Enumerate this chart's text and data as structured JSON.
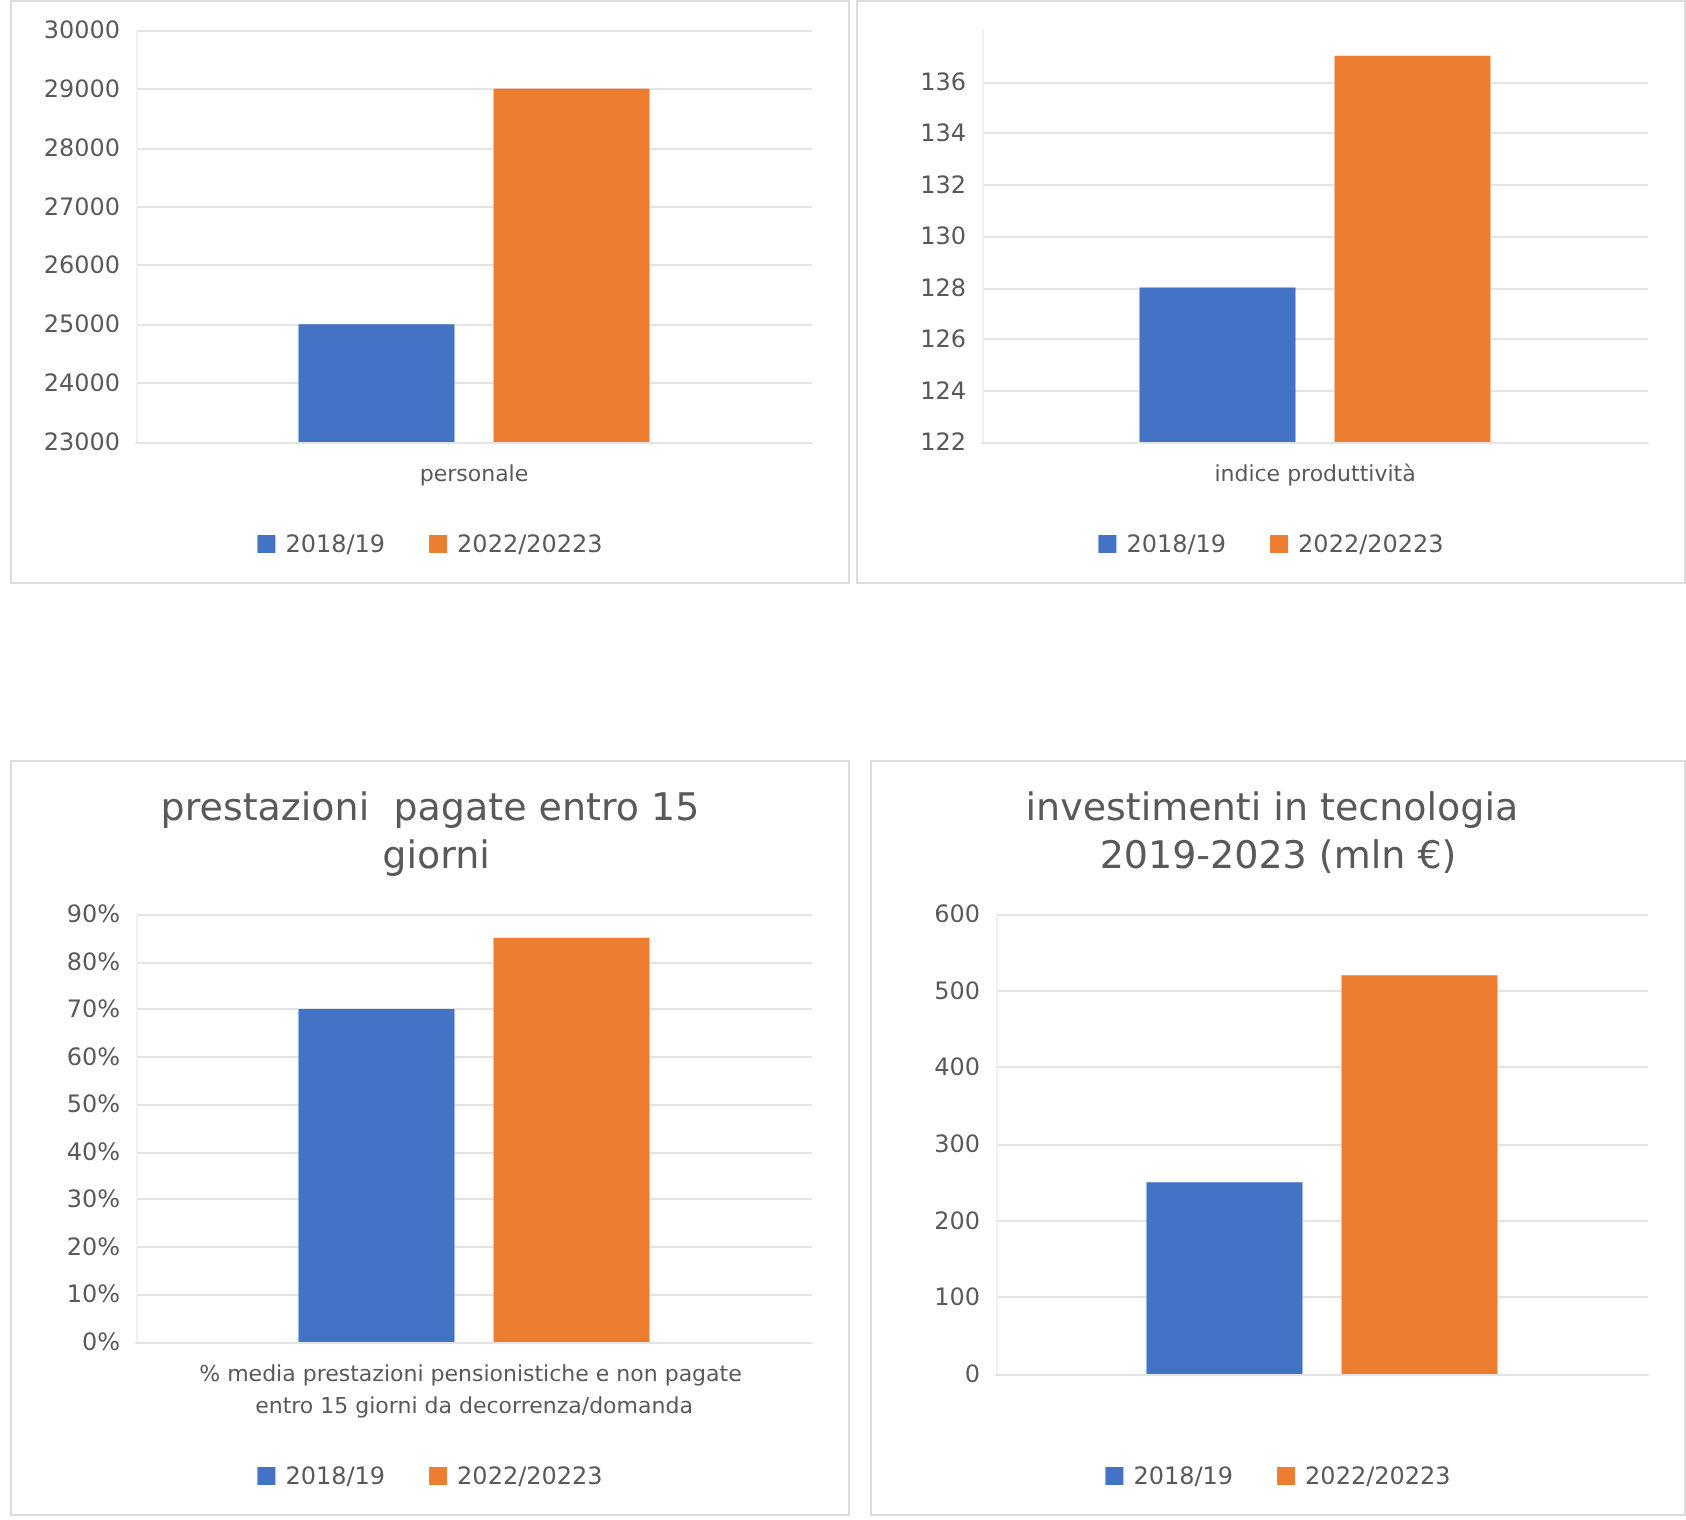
{
  "chart_data": [
    {
      "type": "bar",
      "categories": [
        "personale"
      ],
      "series": [
        {
          "name": "2018/19",
          "color": "#4472c4",
          "values": [
            25000
          ]
        },
        {
          "name": "2022/20223",
          "color": "#ed7d31",
          "values": [
            29000
          ]
        }
      ],
      "ylim": [
        23000,
        30000
      ],
      "yticks": [
        23000,
        24000,
        25000,
        26000,
        27000,
        28000,
        29000,
        30000
      ],
      "grid": "y",
      "legend": "bottom"
    },
    {
      "type": "bar",
      "categories": [
        "indice produttività"
      ],
      "series": [
        {
          "name": "2018/19",
          "color": "#4472c4",
          "values": [
            128
          ]
        },
        {
          "name": "2022/20223",
          "color": "#ed7d31",
          "values": [
            137
          ]
        }
      ],
      "ylim": [
        122,
        138
      ],
      "yticks": [
        122,
        124,
        126,
        128,
        130,
        132,
        134,
        136
      ],
      "grid": "y",
      "legend": "bottom"
    },
    {
      "type": "bar",
      "title": "prestazioni  pagate entro 15 giorni",
      "categories": [
        "% media prestazioni pensionistiche e non pagate entro 15 giorni da decorrenza/domanda"
      ],
      "series": [
        {
          "name": "2018/19",
          "color": "#4472c4",
          "values": [
            70
          ]
        },
        {
          "name": "2022/20223",
          "color": "#ed7d31",
          "values": [
            85
          ]
        }
      ],
      "ylim": [
        0,
        90
      ],
      "yticks": [
        {
          "value": 0,
          "label": "0%"
        },
        {
          "value": 10,
          "label": "10%"
        },
        {
          "value": 20,
          "label": "20%"
        },
        {
          "value": 30,
          "label": "30%"
        },
        {
          "value": 40,
          "label": "40%"
        },
        {
          "value": 50,
          "label": "50%"
        },
        {
          "value": 60,
          "label": "60%"
        },
        {
          "value": 70,
          "label": "70%"
        },
        {
          "value": 80,
          "label": "80%"
        },
        {
          "value": 90,
          "label": "90%"
        }
      ],
      "grid": "y",
      "legend": "bottom"
    },
    {
      "type": "bar",
      "title": "investimenti in tecnologia 2019-2023 (mln €)",
      "categories": [
        null
      ],
      "series": [
        {
          "name": "2018/19",
          "color": "#4472c4",
          "values": [
            250
          ]
        },
        {
          "name": "2022/20223",
          "color": "#ed7d31",
          "values": [
            520
          ]
        }
      ],
      "ylim": [
        0,
        600
      ],
      "yticks": [
        0,
        100,
        200,
        300,
        400,
        500,
        600
      ],
      "grid": "y",
      "legend": "bottom"
    }
  ]
}
